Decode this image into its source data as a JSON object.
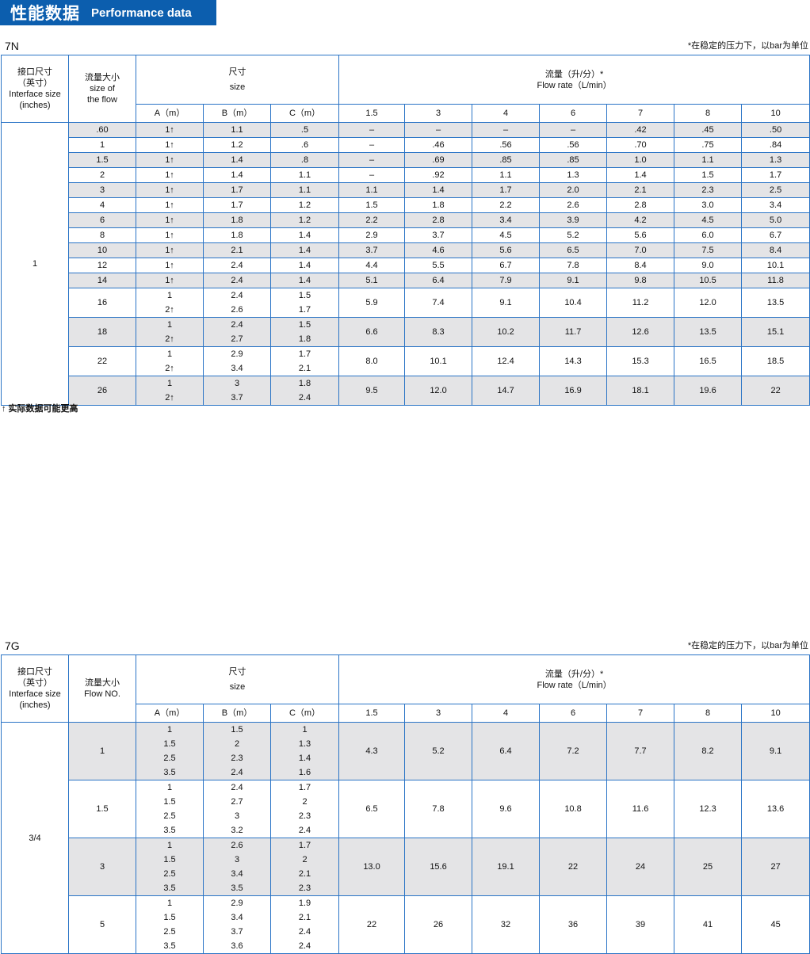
{
  "title": {
    "zh": "性能数据",
    "en": "Performance data"
  },
  "footnote": "↑ 实际数据可能更高",
  "tables": [
    {
      "model": "7N",
      "note": "*在稳定的压力下，以bar为单位",
      "headers": {
        "interface": [
          "接口尺寸",
          "（英寸）",
          "Interface size",
          "(inches)"
        ],
        "flow": [
          "流量大小",
          "",
          "size of",
          "the flow"
        ],
        "size": [
          "尺寸",
          "size"
        ],
        "rate": [
          "流量（升/分）*",
          "Flow rate（L/min）"
        ],
        "dims": [
          "A（m）",
          "B（m）",
          "C（m）"
        ],
        "pressures": [
          "1.5",
          "3",
          "4",
          "6",
          "7",
          "8",
          "10"
        ]
      },
      "interface_value": "1",
      "rows": [
        {
          "flow": ".60",
          "A": [
            "1↑"
          ],
          "B": [
            "1.1"
          ],
          "C": [
            ".5"
          ],
          "rates": [
            "–",
            "–",
            "–",
            "–",
            ".42",
            ".45",
            ".50"
          ]
        },
        {
          "flow": "1",
          "A": [
            "1↑"
          ],
          "B": [
            "1.2"
          ],
          "C": [
            ".6"
          ],
          "rates": [
            "–",
            ".46",
            ".56",
            ".56",
            ".70",
            ".75",
            ".84"
          ]
        },
        {
          "flow": "1.5",
          "A": [
            "1↑"
          ],
          "B": [
            "1.4"
          ],
          "C": [
            ".8"
          ],
          "rates": [
            "–",
            ".69",
            ".85",
            ".85",
            "1.0",
            "1.1",
            "1.3"
          ]
        },
        {
          "flow": "2",
          "A": [
            "1↑"
          ],
          "B": [
            "1.4"
          ],
          "C": [
            "1.1"
          ],
          "rates": [
            "–",
            ".92",
            "1.1",
            "1.3",
            "1.4",
            "1.5",
            "1.7"
          ]
        },
        {
          "flow": "3",
          "A": [
            "1↑"
          ],
          "B": [
            "1.7"
          ],
          "C": [
            "1.1"
          ],
          "rates": [
            "1.1",
            "1.4",
            "1.7",
            "2.0",
            "2.1",
            "2.3",
            "2.5"
          ]
        },
        {
          "flow": "4",
          "A": [
            "1↑"
          ],
          "B": [
            "1.7"
          ],
          "C": [
            "1.2"
          ],
          "rates": [
            "1.5",
            "1.8",
            "2.2",
            "2.6",
            "2.8",
            "3.0",
            "3.4"
          ]
        },
        {
          "flow": "6",
          "A": [
            "1↑"
          ],
          "B": [
            "1.8"
          ],
          "C": [
            "1.2"
          ],
          "rates": [
            "2.2",
            "2.8",
            "3.4",
            "3.9",
            "4.2",
            "4.5",
            "5.0"
          ]
        },
        {
          "flow": "8",
          "A": [
            "1↑"
          ],
          "B": [
            "1.8"
          ],
          "C": [
            "1.4"
          ],
          "rates": [
            "2.9",
            "3.7",
            "4.5",
            "5.2",
            "5.6",
            "6.0",
            "6.7"
          ]
        },
        {
          "flow": "10",
          "A": [
            "1↑"
          ],
          "B": [
            "2.1"
          ],
          "C": [
            "1.4"
          ],
          "rates": [
            "3.7",
            "4.6",
            "5.6",
            "6.5",
            "7.0",
            "7.5",
            "8.4"
          ]
        },
        {
          "flow": "12",
          "A": [
            "1↑"
          ],
          "B": [
            "2.4"
          ],
          "C": [
            "1.4"
          ],
          "rates": [
            "4.4",
            "5.5",
            "6.7",
            "7.8",
            "8.4",
            "9.0",
            "10.1"
          ]
        },
        {
          "flow": "14",
          "A": [
            "1↑"
          ],
          "B": [
            "2.4"
          ],
          "C": [
            "1.4"
          ],
          "rates": [
            "5.1",
            "6.4",
            "7.9",
            "9.1",
            "9.8",
            "10.5",
            "11.8"
          ]
        },
        {
          "flow": "16",
          "A": [
            "1",
            "2↑"
          ],
          "B": [
            "2.4",
            "2.6"
          ],
          "C": [
            "1.5",
            "1.7"
          ],
          "rates": [
            "5.9",
            "7.4",
            "9.1",
            "10.4",
            "11.2",
            "12.0",
            "13.5"
          ]
        },
        {
          "flow": "18",
          "A": [
            "1",
            "2↑"
          ],
          "B": [
            "2.4",
            "2.7"
          ],
          "C": [
            "1.5",
            "1.8"
          ],
          "rates": [
            "6.6",
            "8.3",
            "10.2",
            "11.7",
            "12.6",
            "13.5",
            "15.1"
          ]
        },
        {
          "flow": "22",
          "A": [
            "1",
            "2↑"
          ],
          "B": [
            "2.9",
            "3.4"
          ],
          "C": [
            "1.7",
            "2.1"
          ],
          "rates": [
            "8.0",
            "10.1",
            "12.4",
            "14.3",
            "15.3",
            "16.5",
            "18.5"
          ]
        },
        {
          "flow": "26",
          "A": [
            "1",
            "2↑"
          ],
          "B": [
            "3",
            "3.7"
          ],
          "C": [
            "1.8",
            "2.4"
          ],
          "rates": [
            "9.5",
            "12.0",
            "14.7",
            "16.9",
            "18.1",
            "19.6",
            "22"
          ]
        }
      ]
    },
    {
      "model": "7G",
      "note": "*在稳定的压力下，以bar为单位",
      "headers": {
        "interface": [
          "接口尺寸",
          "（英寸）",
          "Interface size",
          "(inches)"
        ],
        "flow": [
          "流量大小",
          "Flow NO."
        ],
        "size": [
          "尺寸",
          "size"
        ],
        "rate": [
          "流量（升/分）*",
          "Flow rate（L/min）"
        ],
        "dims": [
          "A（m）",
          "B（m）",
          "C（m）"
        ],
        "pressures": [
          "1.5",
          "3",
          "4",
          "6",
          "7",
          "8",
          "10"
        ]
      },
      "interface_value": "3/4",
      "rows": [
        {
          "flow": "1",
          "A": [
            "1",
            "1.5",
            "2.5",
            "3.5"
          ],
          "B": [
            "1.5",
            "2",
            "2.3",
            "2.4"
          ],
          "C": [
            "1",
            "1.3",
            "1.4",
            "1.6"
          ],
          "rates": [
            "4.3",
            "5.2",
            "6.4",
            "7.2",
            "7.7",
            "8.2",
            "9.1"
          ]
        },
        {
          "flow": "1.5",
          "A": [
            "1",
            "1.5",
            "2.5",
            "3.5"
          ],
          "B": [
            "2.4",
            "2.7",
            "3",
            "3.2"
          ],
          "C": [
            "1.7",
            "2",
            "2.3",
            "2.4"
          ],
          "rates": [
            "6.5",
            "7.8",
            "9.6",
            "10.8",
            "11.6",
            "12.3",
            "13.6"
          ]
        },
        {
          "flow": "3",
          "A": [
            "1",
            "1.5",
            "2.5",
            "3.5"
          ],
          "B": [
            "2.6",
            "3",
            "3.4",
            "3.5"
          ],
          "C": [
            "1.7",
            "2",
            "2.1",
            "2.3"
          ],
          "rates": [
            "13.0",
            "15.6",
            "19.1",
            "22",
            "24",
            "25",
            "27"
          ]
        },
        {
          "flow": "5",
          "A": [
            "1",
            "1.5",
            "2.5",
            "3.5"
          ],
          "B": [
            "2.9",
            "3.4",
            "3.7",
            "3.6"
          ],
          "C": [
            "1.9",
            "2.1",
            "2.4",
            "2.4"
          ],
          "rates": [
            "22",
            "26",
            "32",
            "36",
            "39",
            "41",
            "45"
          ]
        }
      ]
    }
  ],
  "colors": {
    "brand": "#0c5eae",
    "border": "#2a74c6",
    "row_shade": "#e4e4e6"
  }
}
